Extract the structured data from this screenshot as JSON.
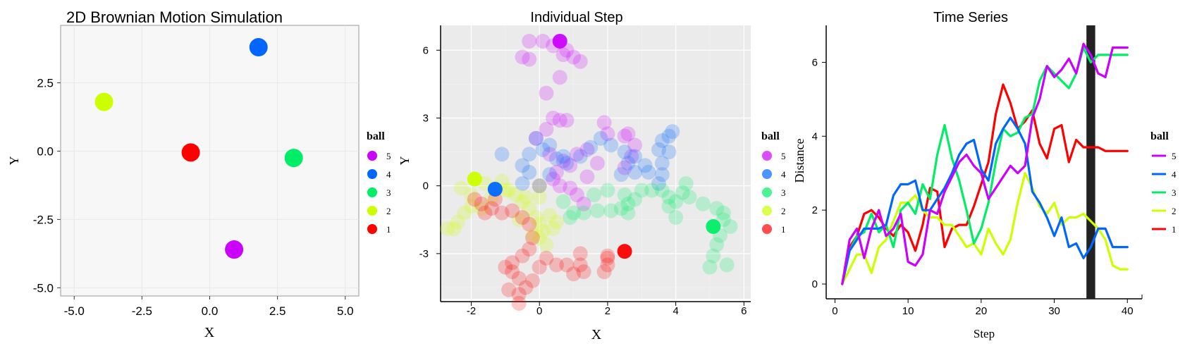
{
  "colors": {
    "ball5": "#cc00ff",
    "ball4": "#0066ff",
    "ball3": "#00ee66",
    "ball2": "#ccff00",
    "ball1": "#ff0000",
    "panel_bg": "#ebebeb",
    "black_bar": "#222222"
  },
  "chart_data": [
    {
      "type": "scatter",
      "title": "2D Brownian Motion Simulation",
      "xlabel": "X",
      "ylabel": "Y",
      "xlim": [
        -5.5,
        5.5
      ],
      "ylim": [
        -5.3,
        4.6
      ],
      "xticks": [
        -5.0,
        -2.5,
        0.0,
        2.5,
        5.0
      ],
      "xtick_labels": [
        "-5.0",
        "-2.5",
        "0.0",
        "2.5",
        "5.0"
      ],
      "yticks": [
        -5.0,
        -2.5,
        0.0,
        2.5
      ],
      "ytick_labels": [
        "-5.0",
        "-2.5",
        "0.0",
        "2.5"
      ],
      "grid": true,
      "legend_title": "ball",
      "legend": [
        "5",
        "4",
        "3",
        "2",
        "1"
      ],
      "legend_position": "right",
      "points": [
        {
          "ball": "5",
          "x": 0.9,
          "y": -3.6
        },
        {
          "ball": "4",
          "x": 1.8,
          "y": 3.8
        },
        {
          "ball": "3",
          "x": 3.1,
          "y": -0.25
        },
        {
          "ball": "2",
          "x": -3.9,
          "y": 1.8
        },
        {
          "ball": "1",
          "x": -0.7,
          "y": -0.05
        }
      ]
    },
    {
      "type": "scatter",
      "title": "Individual Step",
      "xlabel": "X",
      "ylabel": "Y",
      "xlim": [
        -2.9,
        6.2
      ],
      "ylim": [
        -5.0,
        7.1
      ],
      "xticks": [
        -2,
        0,
        2,
        4,
        6
      ],
      "xtick_labels": [
        "-2",
        "0",
        "2",
        "4",
        "6"
      ],
      "yticks": [
        -3,
        0,
        3,
        6
      ],
      "ytick_labels": [
        "-3",
        "0",
        "3",
        "6"
      ],
      "grid": true,
      "legend_title": "ball",
      "legend": [
        "5",
        "4",
        "3",
        "2",
        "1"
      ],
      "legend_position": "right",
      "series": [
        {
          "ball": "5",
          "trail": [
            [
              -0.3,
              6.4
            ],
            [
              0.1,
              6.4
            ],
            [
              0.4,
              6.2
            ],
            [
              0.7,
              5.8
            ],
            [
              0.8,
              6.0
            ],
            [
              1.0,
              5.7
            ],
            [
              1.2,
              5.5
            ],
            [
              -0.5,
              5.7
            ],
            [
              0.6,
              4.8
            ],
            [
              0.2,
              4.1
            ],
            [
              -0.3,
              5.6
            ],
            [
              0.4,
              3.0
            ],
            [
              0.6,
              2.9
            ],
            [
              0.8,
              2.9
            ],
            [
              0.2,
              2.5
            ],
            [
              -0.1,
              2.1
            ],
            [
              0.3,
              1.4
            ],
            [
              0.7,
              1.1
            ],
            [
              1.1,
              1.4
            ],
            [
              1.4,
              1.6
            ],
            [
              0.9,
              0.9
            ],
            [
              0.5,
              0.6
            ],
            [
              0.4,
              0.3
            ],
            [
              0.6,
              0.0
            ],
            [
              0.9,
              -0.1
            ],
            [
              1.3,
              -0.8
            ],
            [
              1.4,
              0.4
            ],
            [
              1.7,
              1.0
            ],
            [
              2.0,
              2.3
            ],
            [
              2.5,
              2.2
            ],
            [
              2.8,
              1.8
            ],
            [
              2.7,
              1.3
            ],
            [
              2.5,
              0.8
            ],
            [
              1.9,
              2.8
            ],
            [
              2.6,
              2.3
            ],
            [
              1.1,
              -0.4
            ]
          ],
          "current": [
            0.6,
            6.4
          ]
        },
        {
          "ball": "4",
          "trail": [
            [
              -1.1,
              1.4
            ],
            [
              -0.5,
              0.9
            ],
            [
              -0.3,
              1.4
            ],
            [
              0.1,
              1.6
            ],
            [
              -0.1,
              2.1
            ],
            [
              0.3,
              1.8
            ],
            [
              0.5,
              1.2
            ],
            [
              0.8,
              1.0
            ],
            [
              1.2,
              1.3
            ],
            [
              1.5,
              1.7
            ],
            [
              1.8,
              2.1
            ],
            [
              2.1,
              1.8
            ],
            [
              2.5,
              1.5
            ],
            [
              2.8,
              1.3
            ],
            [
              2.6,
              1.0
            ],
            [
              2.4,
              0.5
            ],
            [
              3.2,
              0.6
            ],
            [
              3.6,
              1.0
            ],
            [
              3.8,
              1.5
            ],
            [
              3.6,
              2.0
            ],
            [
              3.8,
              2.2
            ],
            [
              3.5,
              1.6
            ],
            [
              3.6,
              0.5
            ],
            [
              3.1,
              0.9
            ],
            [
              2.8,
              0.6
            ],
            [
              3.9,
              2.4
            ],
            [
              0.3,
              0.5
            ],
            [
              0.7,
              1.3
            ],
            [
              -0.3,
              0.6
            ],
            [
              -0.5,
              0.1
            ],
            [
              3.5,
              0.1
            ]
          ],
          "current": [
            -1.3,
            -0.15
          ]
        },
        {
          "ball": "3",
          "trail": [
            [
              0.7,
              -0.7
            ],
            [
              1.0,
              -1.2
            ],
            [
              1.3,
              -1.2
            ],
            [
              1.7,
              -1.1
            ],
            [
              2.1,
              -1.1
            ],
            [
              2.4,
              -1.0
            ],
            [
              2.6,
              -0.8
            ],
            [
              2.5,
              -0.4
            ],
            [
              2.8,
              -0.6
            ],
            [
              3.3,
              -0.2
            ],
            [
              3.6,
              -0.2
            ],
            [
              3.8,
              -0.5
            ],
            [
              4.0,
              -0.7
            ],
            [
              4.2,
              -0.3
            ],
            [
              4.4,
              -0.5
            ],
            [
              4.8,
              -0.8
            ],
            [
              5.2,
              -1.0
            ],
            [
              5.4,
              -1.5
            ],
            [
              5.6,
              -1.8
            ],
            [
              5.3,
              -2.2
            ],
            [
              5.2,
              -2.6
            ],
            [
              5.1,
              -3.1
            ],
            [
              5.0,
              -3.6
            ],
            [
              5.5,
              -3.5
            ],
            [
              4.0,
              -1.4
            ],
            [
              3.8,
              -0.9
            ],
            [
              3.0,
              -0.2
            ],
            [
              2.0,
              -0.2
            ],
            [
              1.6,
              -0.4
            ],
            [
              0.9,
              -1.4
            ],
            [
              4.3,
              0.1
            ],
            [
              2.6,
              -1.2
            ],
            [
              5.4,
              -1.2
            ]
          ],
          "current": [
            5.1,
            -1.8
          ]
        },
        {
          "ball": "2",
          "trail": [
            [
              -1.9,
              0.3
            ],
            [
              -1.6,
              0.1
            ],
            [
              -1.3,
              -0.1
            ],
            [
              -1.0,
              -0.2
            ],
            [
              -0.7,
              -0.4
            ],
            [
              -0.5,
              -0.7
            ],
            [
              -0.3,
              -1.0
            ],
            [
              -0.1,
              -1.4
            ],
            [
              0.0,
              -1.7
            ],
            [
              0.1,
              -2.0
            ],
            [
              0.0,
              -2.3
            ],
            [
              0.2,
              -2.6
            ],
            [
              0.4,
              -1.9
            ],
            [
              0.5,
              -1.6
            ],
            [
              0.3,
              -1.3
            ],
            [
              -0.4,
              -0.5
            ],
            [
              -0.9,
              -0.2
            ],
            [
              -1.4,
              -0.5
            ],
            [
              -2.0,
              -0.9
            ],
            [
              -2.2,
              -1.2
            ],
            [
              -2.4,
              -1.6
            ],
            [
              -2.5,
              -1.9
            ],
            [
              -2.7,
              -1.9
            ],
            [
              -1.7,
              -1.0
            ],
            [
              -0.6,
              -1.5
            ],
            [
              -0.2,
              -2.2
            ],
            [
              -2.3,
              -0.1
            ],
            [
              -2.0,
              -0.4
            ],
            [
              -1.1,
              0.2
            ],
            [
              0.0,
              -0.5
            ]
          ],
          "current": [
            -1.9,
            0.3
          ]
        },
        {
          "ball": "1",
          "trail": [
            [
              -1.9,
              -0.6
            ],
            [
              -1.7,
              -0.8
            ],
            [
              -1.4,
              -1.0
            ],
            [
              -1.1,
              -1.2
            ],
            [
              -0.8,
              -1.1
            ],
            [
              -0.5,
              -1.4
            ],
            [
              -0.3,
              -1.7
            ],
            [
              -0.2,
              -2.3
            ],
            [
              -0.3,
              -2.8
            ],
            [
              -0.5,
              -3.1
            ],
            [
              -0.8,
              -3.4
            ],
            [
              -1.0,
              -3.6
            ],
            [
              -0.8,
              -3.8
            ],
            [
              -0.6,
              -4.1
            ],
            [
              -0.4,
              -4.5
            ],
            [
              -0.2,
              -4.2
            ],
            [
              0.0,
              -3.6
            ],
            [
              0.2,
              -3.2
            ],
            [
              0.5,
              -3.5
            ],
            [
              0.8,
              -3.5
            ],
            [
              1.2,
              -3.5
            ],
            [
              1.3,
              -3.8
            ],
            [
              1.2,
              -3.0
            ],
            [
              2.0,
              -3.2
            ],
            [
              2.0,
              -3.5
            ],
            [
              1.9,
              -3.8
            ],
            [
              -0.6,
              -4.8
            ],
            [
              -0.9,
              -4.6
            ],
            [
              -0.6,
              -5.2
            ],
            [
              -1.3,
              -0.6
            ],
            [
              -1.6,
              -1.2
            ],
            [
              1.0,
              -3.9
            ],
            [
              2.0,
              -3.1
            ]
          ],
          "current": [
            2.5,
            -2.9
          ]
        },
        {
          "ball": "neutral",
          "trail": [],
          "current": [
            0.0,
            0.0
          ]
        }
      ]
    },
    {
      "type": "line",
      "title": "Time Series",
      "xlabel": "Step",
      "ylabel": "Distance",
      "xlim": [
        -1.2,
        42.0
      ],
      "ylim": [
        -0.4,
        7.0
      ],
      "xticks": [
        0,
        10,
        20,
        30,
        40
      ],
      "xtick_labels": [
        "0",
        "10",
        "20",
        "30",
        "40"
      ],
      "yticks": [
        0,
        2,
        4,
        6
      ],
      "ytick_labels": [
        "0",
        "2",
        "4",
        "6"
      ],
      "grid": false,
      "highlight_step": 35,
      "legend_title": "ball",
      "legend": [
        "5",
        "4",
        "3",
        "2",
        "1"
      ],
      "legend_position": "right",
      "x": [
        1,
        2,
        3,
        4,
        5,
        6,
        7,
        8,
        9,
        10,
        11,
        12,
        13,
        14,
        15,
        16,
        17,
        18,
        19,
        20,
        21,
        22,
        23,
        24,
        25,
        26,
        27,
        28,
        29,
        30,
        31,
        32,
        33,
        34,
        35,
        36,
        37,
        38,
        39,
        40
      ],
      "series": [
        {
          "ball": "5",
          "values": [
            0.0,
            1.2,
            1.5,
            0.7,
            1.5,
            2.0,
            1.3,
            1.5,
            1.9,
            0.6,
            0.5,
            0.8,
            2.0,
            1.9,
            2.5,
            2.9,
            3.3,
            3.5,
            3.2,
            3.0,
            2.3,
            2.6,
            2.9,
            3.2,
            3.0,
            3.2,
            4.5,
            5.0,
            5.9,
            5.6,
            5.8,
            6.1,
            5.7,
            6.5,
            6.2,
            5.7,
            5.6,
            6.4,
            6.4,
            6.4
          ]
        },
        {
          "ball": "4",
          "values": [
            0.0,
            0.9,
            1.2,
            1.5,
            1.5,
            1.5,
            1.6,
            2.4,
            2.7,
            2.7,
            2.8,
            2.0,
            2.0,
            2.3,
            2.6,
            3.0,
            3.5,
            3.8,
            3.9,
            3.1,
            2.8,
            3.8,
            4.2,
            4.5,
            4.2,
            3.8,
            2.5,
            2.2,
            1.8,
            1.3,
            1.8,
            1.0,
            1.1,
            0.7,
            1.0,
            1.5,
            1.5,
            1.0,
            1.0,
            1.0
          ]
        },
        {
          "ball": "3",
          "values": [
            0.0,
            0.9,
            1.3,
            1.4,
            1.9,
            1.4,
            1.6,
            1.0,
            2.0,
            2.2,
            1.9,
            2.7,
            2.3,
            3.5,
            4.3,
            3.4,
            2.8,
            2.0,
            1.1,
            1.5,
            2.2,
            3.3,
            4.2,
            4.0,
            4.1,
            4.5,
            4.6,
            5.5,
            5.9,
            5.7,
            5.5,
            5.3,
            5.7,
            6.4,
            6.0,
            6.2,
            6.2,
            6.2,
            6.2,
            6.2
          ]
        },
        {
          "ball": "2",
          "values": [
            0.0,
            0.4,
            0.8,
            0.8,
            0.3,
            1.0,
            1.2,
            1.7,
            2.2,
            2.2,
            2.4,
            2.0,
            1.8,
            1.8,
            1.6,
            1.6,
            1.3,
            1.0,
            1.1,
            0.8,
            1.5,
            1.1,
            0.8,
            1.2,
            2.2,
            3.0,
            2.6,
            2.1,
            1.9,
            2.2,
            1.6,
            1.8,
            1.8,
            1.9,
            1.7,
            1.5,
            1.2,
            0.5,
            0.4,
            0.4
          ]
        },
        {
          "ball": "1",
          "values": [
            0.0,
            1.0,
            1.3,
            1.9,
            2.0,
            1.8,
            1.5,
            1.3,
            1.6,
            1.4,
            0.9,
            1.6,
            2.6,
            2.5,
            1.0,
            1.5,
            1.6,
            1.6,
            2.1,
            2.7,
            3.3,
            4.6,
            5.4,
            4.9,
            4.2,
            4.4,
            4.7,
            3.8,
            3.4,
            4.2,
            4.3,
            3.3,
            3.9,
            3.7,
            3.7,
            3.7,
            3.6,
            3.6,
            3.6,
            3.6
          ]
        }
      ]
    }
  ]
}
